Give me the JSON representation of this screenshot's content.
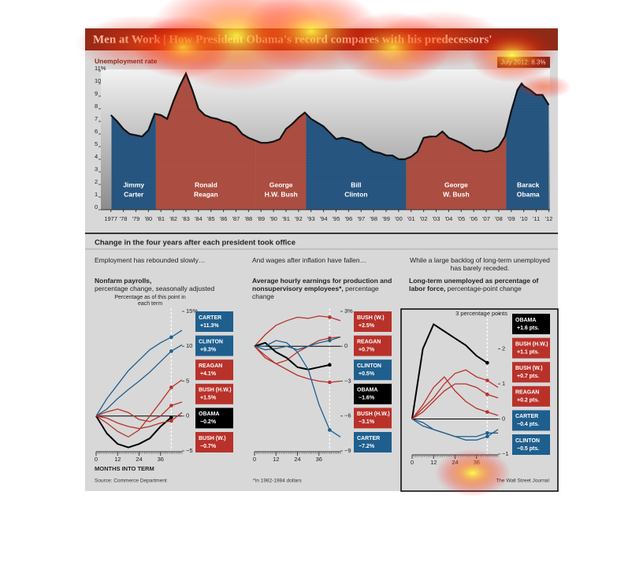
{
  "chart_data": [
    {
      "type": "area",
      "title": "Men at Work | How President Obama's record compares with his predecessors'",
      "ylabel": "Unemployment rate",
      "annotation": "July 2012: 8.3%",
      "x": [
        1977.0,
        1977.5,
        1978.0,
        1978.5,
        1979.0,
        1979.5,
        1980.0,
        1980.5,
        1981.0,
        1981.5,
        1982.0,
        1982.5,
        1983.0,
        1983.5,
        1984.0,
        1984.5,
        1985.0,
        1985.5,
        1986.0,
        1986.5,
        1987.0,
        1987.5,
        1988.0,
        1988.5,
        1989.0,
        1989.5,
        1990.0,
        1990.5,
        1991.0,
        1991.5,
        1992.0,
        1992.5,
        1993.0,
        1993.5,
        1994.0,
        1994.5,
        1995.0,
        1995.5,
        1996.0,
        1996.5,
        1997.0,
        1997.5,
        1998.0,
        1998.5,
        1999.0,
        1999.5,
        2000.0,
        2000.5,
        2001.0,
        2001.5,
        2002.0,
        2002.5,
        2003.0,
        2003.5,
        2004.0,
        2004.5,
        2005.0,
        2005.5,
        2006.0,
        2006.5,
        2007.0,
        2007.5,
        2008.0,
        2008.5,
        2009.0,
        2009.5,
        2009.83,
        2010.0,
        2010.5,
        2011.0,
        2011.5,
        2012.0
      ],
      "values": [
        7.5,
        7.0,
        6.4,
        6.0,
        5.9,
        5.8,
        6.3,
        7.6,
        7.5,
        7.2,
        8.6,
        9.8,
        10.8,
        9.5,
        8.0,
        7.5,
        7.3,
        7.2,
        7.0,
        6.9,
        6.6,
        6.0,
        5.7,
        5.5,
        5.3,
        5.3,
        5.4,
        5.6,
        6.4,
        6.8,
        7.3,
        7.7,
        7.2,
        6.9,
        6.6,
        6.1,
        5.6,
        5.7,
        5.6,
        5.4,
        5.3,
        4.9,
        4.6,
        4.5,
        4.3,
        4.3,
        4.0,
        4.0,
        4.2,
        4.6,
        5.7,
        5.8,
        5.8,
        6.2,
        5.7,
        5.5,
        5.3,
        5.0,
        4.7,
        4.7,
        4.6,
        4.7,
        5.0,
        5.8,
        7.8,
        9.5,
        10.0,
        9.8,
        9.5,
        9.1,
        9.1,
        8.3
      ],
      "bands": [
        {
          "name": [
            "Jimmy",
            "Carter"
          ],
          "start": 1977.05,
          "end": 1980.6,
          "color": "#1e4f7b"
        },
        {
          "name": [
            "Ronald",
            "Reagan"
          ],
          "start": 1980.6,
          "end": 1988.6,
          "color": "#a8473a"
        },
        {
          "name": [
            "George",
            "H.W. Bush"
          ],
          "start": 1988.6,
          "end": 1992.6,
          "color": "#a8473a"
        },
        {
          "name": [
            "Bill",
            "Clinton"
          ],
          "start": 1992.6,
          "end": 2000.6,
          "color": "#1e4f7b"
        },
        {
          "name": [
            "George",
            "W. Bush"
          ],
          "start": 2000.6,
          "end": 2008.6,
          "color": "#a8473a"
        },
        {
          "name": [
            "Barack",
            "Obama"
          ],
          "start": 2008.6,
          "color": "#1e4f7b"
        }
      ],
      "xlim": [
        1976.2,
        2012.1
      ],
      "ylim": [
        0,
        11
      ],
      "xticks": [
        1977,
        {
          "value": 1978,
          "label": "'78"
        },
        {
          "value": 1979,
          "label": "'79"
        },
        {
          "value": 1980,
          "label": "'80"
        },
        {
          "value": 1981,
          "label": "'81"
        },
        {
          "value": 1982,
          "label": "'82"
        },
        {
          "value": 1983,
          "label": "'83"
        },
        {
          "value": 1984,
          "label": "'84"
        },
        {
          "value": 1985,
          "label": "'85"
        },
        {
          "value": 1986,
          "label": "'86"
        },
        {
          "value": 1987,
          "label": "'87"
        },
        {
          "value": 1988,
          "label": "'88"
        },
        {
          "value": 1989,
          "label": "'89"
        },
        {
          "value": 1990,
          "label": "'90"
        },
        {
          "value": 1991,
          "label": "'91"
        },
        {
          "value": 1992,
          "label": "'92"
        },
        {
          "value": 1993,
          "label": "'93"
        },
        {
          "value": 1994,
          "label": "'94"
        },
        {
          "value": 1995,
          "label": "'95"
        },
        {
          "value": 1996,
          "label": "'96"
        },
        {
          "value": 1997,
          "label": "'97"
        },
        {
          "value": 1998,
          "label": "'98"
        },
        {
          "value": 1999,
          "label": "'99"
        },
        {
          "value": 2000,
          "label": "'00"
        },
        {
          "value": 2001,
          "label": "'01"
        },
        {
          "value": 2002,
          "label": "'02"
        },
        {
          "value": 2003,
          "label": "'03"
        },
        {
          "value": 2004,
          "label": "'04"
        },
        {
          "value": 2005,
          "label": "'05"
        },
        {
          "value": 2006,
          "label": "'06"
        },
        {
          "value": 2007,
          "label": "'07"
        },
        {
          "value": 2008,
          "label": "'08"
        },
        {
          "value": 2009,
          "label": "'09"
        },
        {
          "value": 2010,
          "label": "'10"
        },
        {
          "value": 2011,
          "label": "'11"
        },
        {
          "value": 2012,
          "label": "'12"
        }
      ],
      "yticks": [
        0,
        1,
        2,
        3,
        4,
        5,
        6,
        7,
        8,
        9,
        10,
        {
          "value": 11,
          "label": "11%"
        }
      ]
    },
    {
      "type": "line",
      "headline": "Employment has rebounded slowly…",
      "title": "Nonfarm payrolls,",
      "subtitle": "percentage change, seasonally adjusted",
      "annotation": "Percentage as of this point in each term",
      "reference_x": 42,
      "xlabel": "MONTHS INTO TERM",
      "source": "Source: Commerce Department",
      "x": [
        0,
        6,
        12,
        18,
        24,
        30,
        36,
        42,
        48
      ],
      "xlim": [
        0,
        48
      ],
      "xticks": [
        0,
        12,
        24,
        36
      ],
      "ylim": [
        -5,
        15
      ],
      "yticks": [
        {
          "value": -5,
          "label": "−5"
        },
        0,
        5,
        10,
        {
          "value": 15,
          "label": "15%"
        }
      ],
      "series": [
        {
          "name": "CARTER",
          "value_label": "+11.3%",
          "color": "#1f5f8e",
          "values": [
            0,
            2.5,
            4.5,
            6.5,
            8,
            9.5,
            10.5,
            11.3,
            12.3
          ]
        },
        {
          "name": "CLINTON",
          "value_label": "+9.3%",
          "color": "#1f5f8e",
          "values": [
            0,
            1,
            2.5,
            3.8,
            5,
            6.3,
            7.8,
            9.3,
            10.2
          ]
        },
        {
          "name": "REAGAN",
          "value_label": "+4.1%",
          "color": "#b8322a",
          "values": [
            0,
            -1,
            -2.2,
            -3,
            -2,
            0,
            2,
            4.1,
            5.2
          ]
        },
        {
          "name": "BUSH (H.W.)",
          "value_label": "+1.5%",
          "color": "#b8322a",
          "values": [
            0,
            0.6,
            1,
            0.5,
            -0.5,
            -0.8,
            0,
            1.5,
            2
          ]
        },
        {
          "name": "OBAMA",
          "value_label": "−0.2%",
          "color": "#000000",
          "values": [
            0,
            -2.5,
            -4,
            -4.5,
            -4,
            -3.2,
            -1.5,
            -0.2,
            null
          ]
        },
        {
          "name": "BUSH (W.)",
          "value_label": "−0.7%",
          "color": "#b8322a",
          "values": [
            0,
            -0.3,
            -1,
            -1.5,
            -1.8,
            -1.5,
            -1,
            -0.7,
            0.5
          ]
        }
      ]
    },
    {
      "type": "line",
      "headline": "And wages after inflation have fallen…",
      "title": "Average hourly earnings for production and nonsupervisory employees*,",
      "subtitle": "percentage change",
      "reference_x": 42,
      "source": "*In 1982-1984 dollars",
      "x": [
        0,
        6,
        12,
        18,
        24,
        30,
        36,
        42,
        48
      ],
      "xlim": [
        0,
        48
      ],
      "xticks": [
        0,
        12,
        24,
        36
      ],
      "ylim": [
        -9,
        3
      ],
      "yticks": [
        {
          "value": -9,
          "label": "−9"
        },
        {
          "value": -6,
          "label": "−6"
        },
        {
          "value": -3,
          "label": "−3"
        },
        0,
        {
          "value": 3,
          "label": "3%"
        }
      ],
      "series": [
        {
          "name": "BUSH (W.)",
          "value_label": "+2.5%",
          "color": "#b8322a",
          "values": [
            0,
            1,
            1.8,
            2.2,
            2.5,
            2.4,
            2.6,
            2.5,
            2.2
          ]
        },
        {
          "name": "REAGAN",
          "value_label": "+0.7%",
          "color": "#b8322a",
          "values": [
            0,
            -1,
            -1.5,
            -1.2,
            -0.5,
            0,
            0.5,
            0.7,
            0.8
          ]
        },
        {
          "name": "CLINTON",
          "value_label": "+0.5%",
          "color": "#1f5f8e",
          "values": [
            0,
            -0.3,
            -0.2,
            0,
            -0.3,
            0,
            0.3,
            0.5,
            0.8
          ]
        },
        {
          "name": "OBAMA",
          "value_label": "−1.6%",
          "color": "#000000",
          "values": [
            0,
            0.3,
            -0.5,
            -1,
            -1.8,
            -2,
            -1.8,
            -1.6,
            null
          ]
        },
        {
          "name": "BUSH (H.W.)",
          "value_label": "−3.1%",
          "color": "#b8322a",
          "values": [
            0,
            -0.8,
            -1.5,
            -2,
            -2.5,
            -2.8,
            -3,
            -3.1,
            -3
          ]
        },
        {
          "name": "CARTER",
          "value_label": "−7.2%",
          "color": "#1f5f8e",
          "values": [
            0,
            0,
            0.5,
            0.3,
            -0.5,
            -2,
            -5,
            -7.2,
            -7.8
          ]
        }
      ]
    },
    {
      "type": "line",
      "headline": "While a large backlog of long-term unemployed has barely receded.",
      "title": "Long-term unemployed as percentage of labor force,",
      "subtitle": "percentage-point change",
      "reference_x": 42,
      "source": "The Wall Street Journal",
      "x": [
        0,
        6,
        12,
        18,
        24,
        30,
        36,
        42,
        48
      ],
      "xlim": [
        0,
        48
      ],
      "xticks": [
        0,
        12,
        24,
        36
      ],
      "ylim": [
        -1,
        3
      ],
      "yticks": [
        {
          "value": -1,
          "label": "−1"
        },
        0,
        1,
        2,
        {
          "value": 3,
          "label": "3 percentage points"
        }
      ],
      "series": [
        {
          "name": "OBAMA",
          "value_label": "+1.6 pts.",
          "color": "#000000",
          "values": [
            0,
            2,
            2.7,
            2.5,
            2.3,
            2.1,
            1.8,
            1.6,
            null
          ]
        },
        {
          "name": "BUSH (H.W.)",
          "value_label": "+1.1 pts.",
          "color": "#b8322a",
          "values": [
            0,
            0.3,
            0.6,
            1,
            1.3,
            1.4,
            1.2,
            1.1,
            0.9
          ]
        },
        {
          "name": "BUSH (W.)",
          "value_label": "+0.7 pts.",
          "color": "#b8322a",
          "values": [
            0,
            0.2,
            0.5,
            0.8,
            1,
            1,
            0.9,
            0.7,
            0.6
          ]
        },
        {
          "name": "REAGAN",
          "value_label": "+0.2 pts.",
          "color": "#b8322a",
          "values": [
            0,
            0.4,
            0.9,
            1.2,
            0.8,
            0.5,
            0.3,
            0.2,
            0.1
          ]
        },
        {
          "name": "CARTER",
          "value_label": "−0.4 pts.",
          "color": "#1f5f8e",
          "values": [
            0,
            -0.2,
            -0.3,
            -0.4,
            -0.5,
            -0.5,
            -0.5,
            -0.4,
            -0.4
          ]
        },
        {
          "name": "CLINTON",
          "value_label": "−0.5 pts.",
          "color": "#1f5f8e",
          "values": [
            0,
            -0.1,
            -0.3,
            -0.4,
            -0.5,
            -0.6,
            -0.6,
            -0.5,
            -0.3
          ]
        }
      ]
    }
  ],
  "section_title": "Change in the four years after each president took office"
}
